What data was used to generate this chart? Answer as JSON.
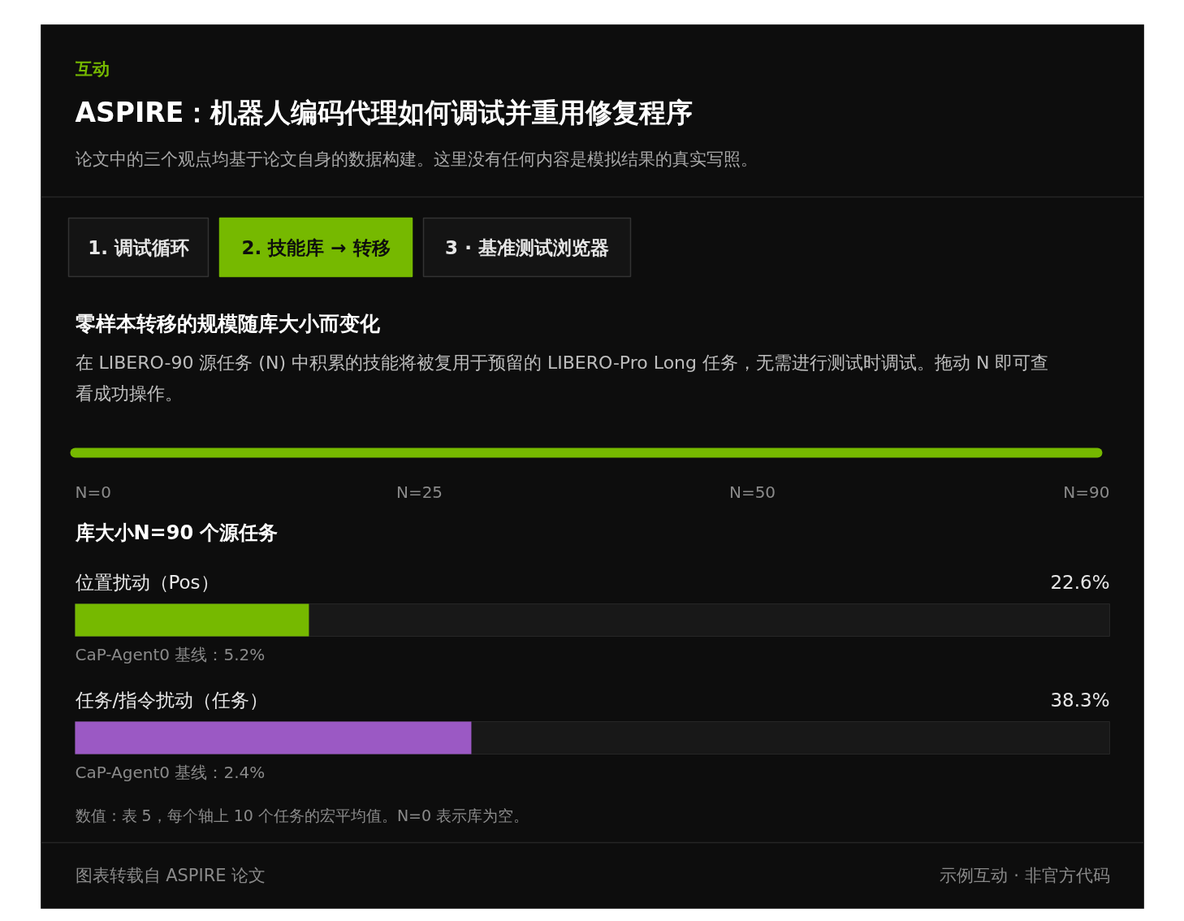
{
  "chart_data": {
    "type": "bar",
    "orientation": "horizontal",
    "title": "ASPIRE：机器人编码代理如何调试并重用修复程序",
    "subtitle": "论文中的三个观点均基于论文自身的数据构建。这里没有任何内容是模拟结果的真实写照。",
    "categories": [
      "位置扰动（Pos）",
      "任务/指令扰动（任务）"
    ],
    "values": [
      22.6,
      38.3
    ],
    "colors": [
      "#76b900",
      "#9b59c4"
    ],
    "value_labels": [
      "22.6%",
      "38.3%"
    ],
    "xlim": [
      0,
      100
    ],
    "tick_labels": false,
    "annotations": [
      "互动",
      "1. 调试循环",
      "2. 技能库 → 转移",
      "3 · 基准测试浏览器",
      "零样本转移的规模随库大小而变化",
      "在 LIBERO-90 源任务 (N) 中积累的技能将被复用于预留的 LIBERO-Pro Long 任务，无需进行测试时调试。拖动 N 即可查看成功操作。",
      "N=0",
      "N=25",
      "N=50",
      "N=90",
      "库大小N=90 个源任务",
      "CaP-Agent0 基线：5.2%",
      "CaP-Agent0 基线：2.4%",
      "数值：表 5，每个轴上 10 个任务的宏平均值。N=0 表示库为空。",
      "图表转载自 ASPIRE 论文",
      "示例互动 · 非官方代码"
    ]
  }
}
